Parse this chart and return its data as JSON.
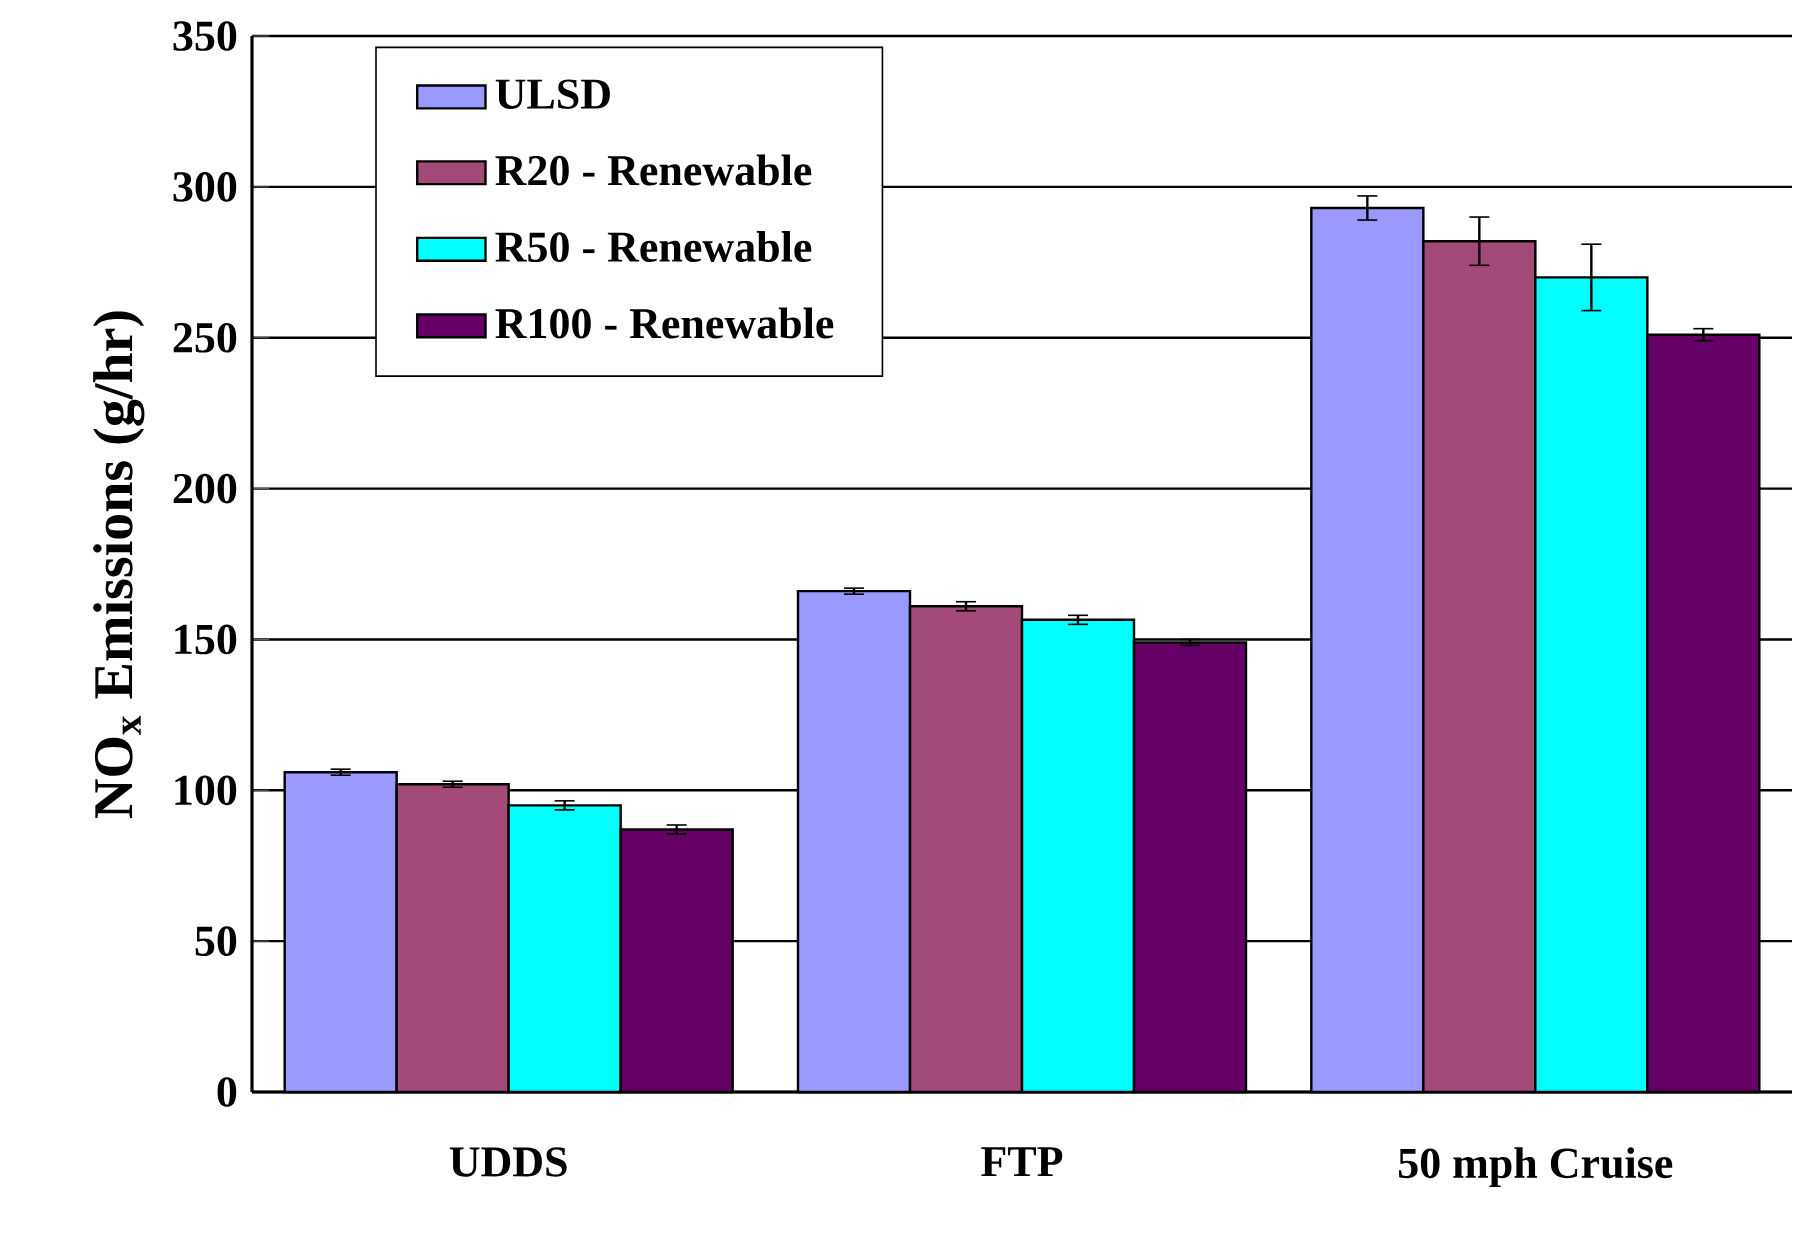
{
  "chart_data": {
    "type": "bar",
    "ylabel": "NO$_{x}$ Emissions (g/hr)",
    "categories": [
      "UDDS",
      "FTP",
      "50 mph Cruise"
    ],
    "series": [
      {
        "name": "ULSD",
        "color": "#9999ff",
        "values": [
          106,
          166,
          293
        ],
        "errors": [
          1,
          1,
          4
        ]
      },
      {
        "name": "R20 - Renewable",
        "color": "#a34a78",
        "values": [
          102,
          161,
          282
        ],
        "errors": [
          1,
          1.5,
          8
        ]
      },
      {
        "name": "R50 - Renewable",
        "color": "#00ffff",
        "values": [
          95,
          156.5,
          270
        ],
        "errors": [
          1.5,
          1.5,
          11
        ]
      },
      {
        "name": "R100 - Renewable",
        "color": "#660066",
        "values": [
          87,
          149,
          251
        ],
        "errors": [
          1.5,
          1,
          2
        ]
      }
    ],
    "ylim": [
      0,
      350
    ],
    "yticks": [
      0,
      50,
      100,
      150,
      200,
      250,
      300,
      350
    ],
    "grid": "y",
    "legend": "top left"
  }
}
